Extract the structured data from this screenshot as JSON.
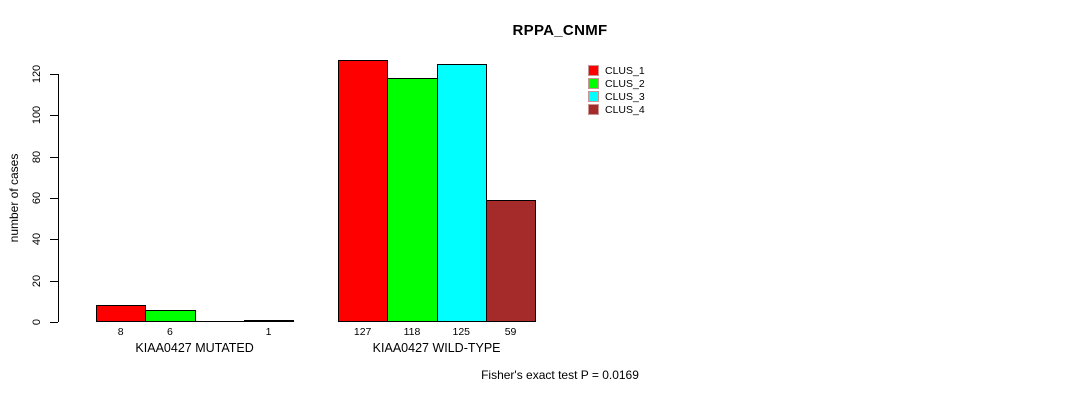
{
  "chart_data": {
    "type": "bar",
    "title": "RPPA_CNMF",
    "xlabel": "",
    "ylabel": "number of cases",
    "categories": [
      "KIAA0427 MUTATED",
      "KIAA0427 WILD-TYPE"
    ],
    "series": [
      {
        "name": "CLUS_1",
        "color": "#ff0000",
        "values": [
          8,
          127
        ]
      },
      {
        "name": "CLUS_2",
        "color": "#00ff00",
        "values": [
          6,
          118
        ]
      },
      {
        "name": "CLUS_3",
        "color": "#00ffff",
        "values": [
          0,
          125
        ]
      },
      {
        "name": "CLUS_4",
        "color": "#a52a2a",
        "values": [
          1,
          59
        ]
      }
    ],
    "yticks": [
      0,
      20,
      40,
      60,
      80,
      100,
      120
    ],
    "ylim": [
      0,
      130
    ],
    "grid": false,
    "legend_position": "top-right",
    "bar_value_labels_shown": true,
    "zero_value_labels_hidden": true,
    "annotation": "Fisher's exact test P = 0.0169"
  }
}
